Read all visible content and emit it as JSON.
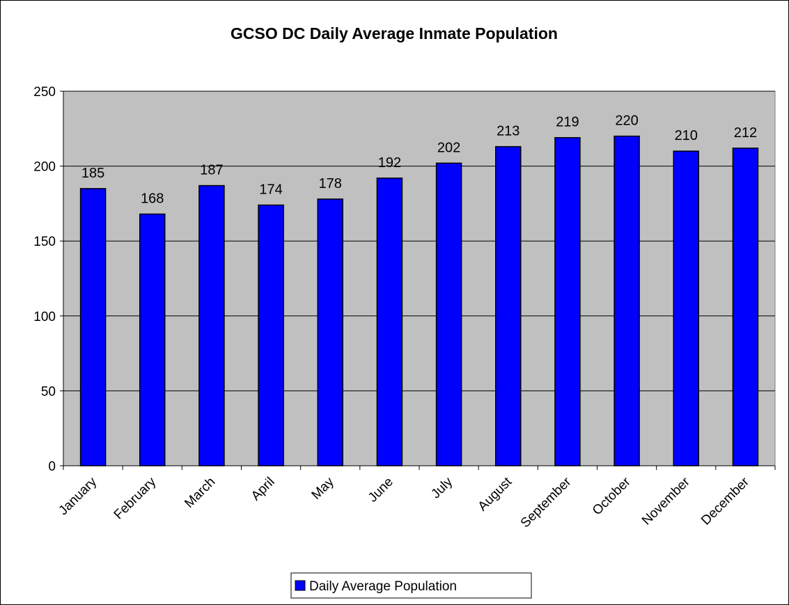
{
  "chart_data": {
    "type": "bar",
    "title": "GCSO DC Daily Average Inmate Population",
    "xlabel": "",
    "ylabel": "",
    "categories": [
      "January",
      "February",
      "March",
      "April",
      "May",
      "June",
      "July",
      "August",
      "September",
      "October",
      "November",
      "December"
    ],
    "series": [
      {
        "name": "Daily Average Population",
        "values": [
          185,
          168,
          187,
          174,
          178,
          192,
          202,
          213,
          219,
          220,
          210,
          212
        ],
        "color": "#0000ff"
      }
    ],
    "data_labels": [
      "185",
      "168",
      "187",
      "174",
      "178",
      "192",
      "202",
      "213",
      "219",
      "220",
      "210",
      "212"
    ],
    "ylim": [
      0,
      250
    ],
    "yticks": [
      "0",
      "50",
      "100",
      "150",
      "200",
      "250"
    ],
    "grid": true,
    "legend": "bottom",
    "plot_background": "#c0c0c0",
    "bar_outline": "#000000"
  }
}
